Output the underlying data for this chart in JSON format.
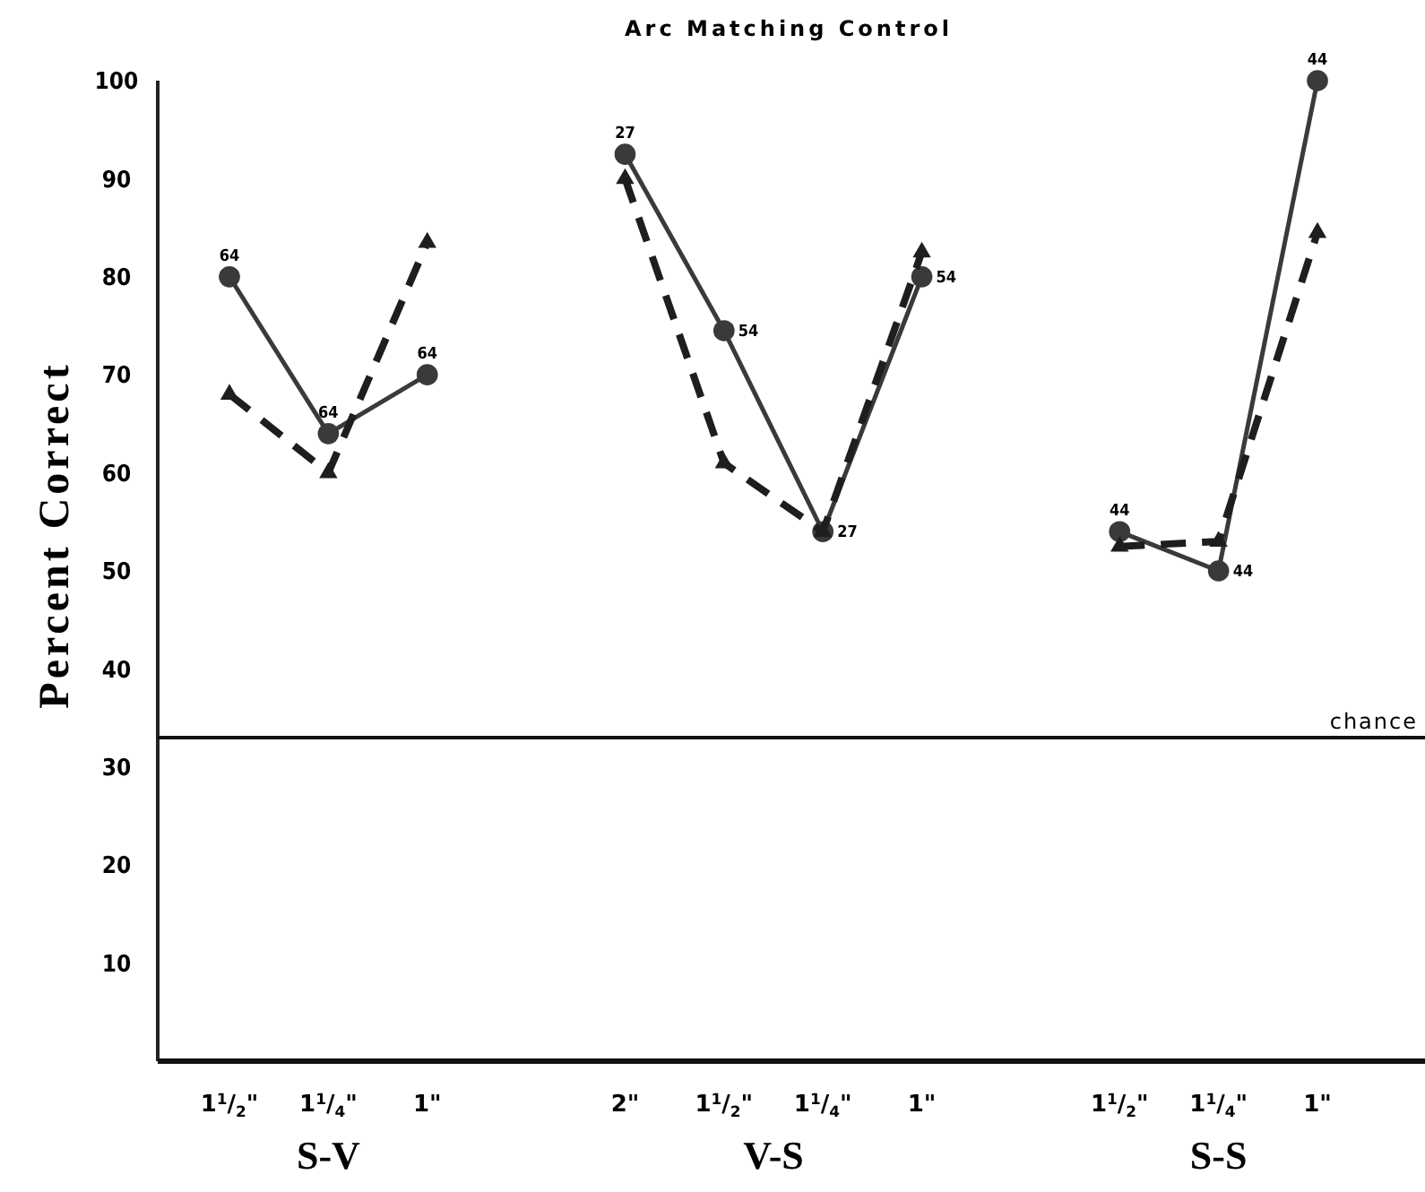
{
  "chart_data": {
    "type": "line",
    "title": "Arc Matching Control",
    "ylabel": "Percent Correct",
    "categories": [
      "1$^{1}$/$_{2}$\"",
      "1$^{1}$/$_{4}$\"",
      "1\"",
      null,
      "2\"",
      "1$^{1}$/$_{2}$\"",
      "1$^{1}$/$_{4}$\"",
      "1\"",
      null,
      "1$^{1}$/$_{2}$\"",
      "1$^{1}$/$_{4}$\"",
      "1\""
    ],
    "series": [
      {
        "color": "#3a3a3a",
        "marker": "circle",
        "line_style": "solid",
        "values": [
          80,
          64,
          70,
          null,
          92.5,
          74.5,
          54,
          80,
          null,
          54,
          50,
          100
        ]
      },
      {
        "color": "#1e1e1e",
        "marker": "triangle",
        "line_style": "dashed",
        "values": [
          68,
          60,
          83.5,
          null,
          90,
          61,
          54,
          82.5,
          null,
          52.5,
          53,
          84.5
        ]
      }
    ],
    "ylim": [
      0,
      100
    ],
    "yticks": [
      10,
      20,
      30,
      40,
      50,
      60,
      70,
      80,
      90,
      100
    ],
    "ref_lines": [
      {
        "axis": "y",
        "value": 33,
        "label": "chance",
        "color": "#111111"
      }
    ],
    "annotations": [
      "S-V",
      "V-S",
      "S-S",
      "64",
      "64",
      "64",
      "27",
      "54",
      "27",
      "54",
      "44",
      "44",
      "44"
    ],
    "grid": false
  }
}
